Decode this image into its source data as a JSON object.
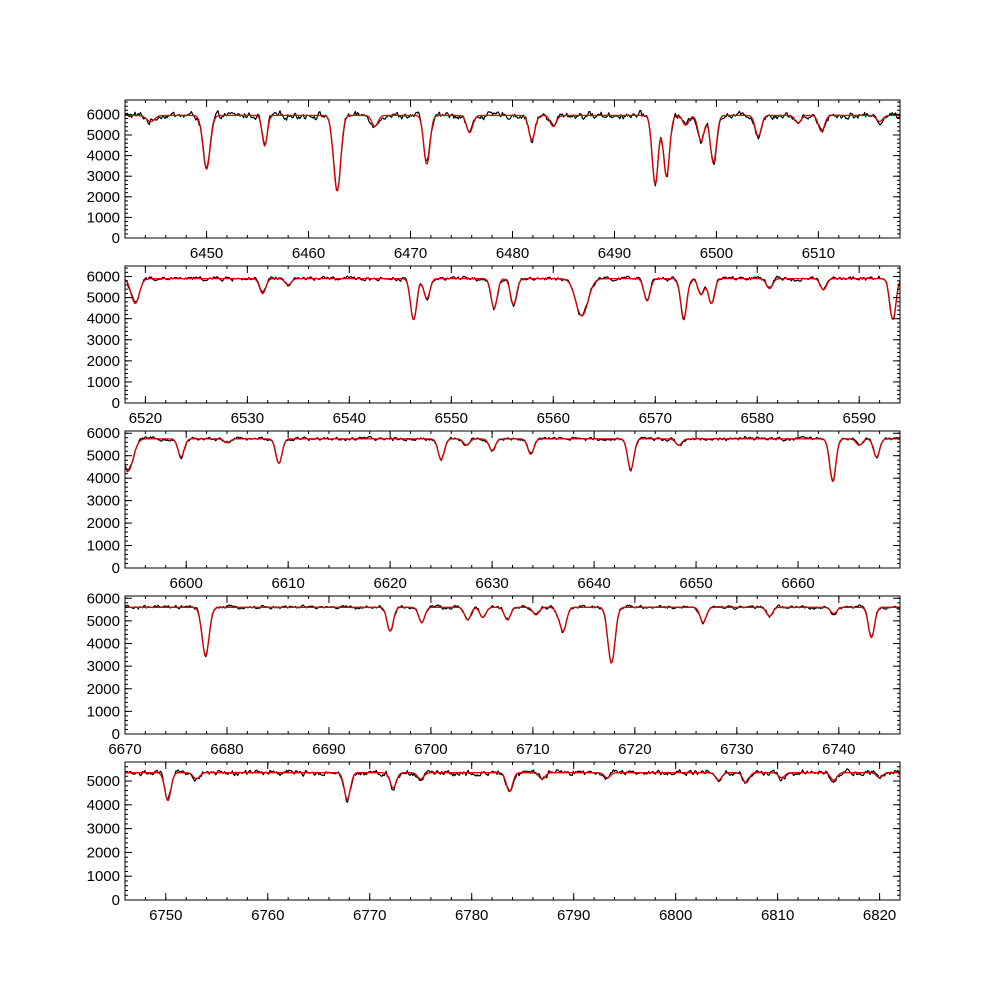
{
  "chart_data": [
    {
      "type": "line",
      "xlim": [
        6442,
        6518
      ],
      "ylim": [
        0,
        6700
      ],
      "xticks": [
        6450,
        6460,
        6470,
        6480,
        6490,
        6500,
        6510
      ],
      "yticks": [
        0,
        1000,
        2000,
        3000,
        4000,
        5000,
        6000
      ],
      "continuum": 5950,
      "series": [
        {
          "color": "#000000",
          "noise": 170
        },
        {
          "color": "#dd0000"
        }
      ],
      "lines": [
        [
          6444.5,
          0.05,
          0.4
        ],
        [
          6450.0,
          0.44,
          0.35
        ],
        [
          6455.7,
          0.25,
          0.25
        ],
        [
          6462.8,
          0.62,
          0.35
        ],
        [
          6466.5,
          0.09,
          0.3
        ],
        [
          6471.6,
          0.4,
          0.3
        ],
        [
          6475.8,
          0.14,
          0.3
        ],
        [
          6481.9,
          0.2,
          0.3
        ],
        [
          6484.0,
          0.09,
          0.3
        ],
        [
          6494.0,
          0.56,
          0.3
        ],
        [
          6495.1,
          0.5,
          0.3
        ],
        [
          6497.0,
          0.08,
          0.3
        ],
        [
          6498.5,
          0.21,
          0.3
        ],
        [
          6499.7,
          0.39,
          0.3
        ],
        [
          6504.1,
          0.17,
          0.3
        ],
        [
          6508.0,
          0.06,
          0.3
        ],
        [
          6510.3,
          0.13,
          0.3
        ],
        [
          6516.0,
          0.05,
          0.3
        ]
      ]
    },
    {
      "type": "line",
      "xlim": [
        6518,
        6594
      ],
      "ylim": [
        0,
        6500
      ],
      "xticks": [
        6520,
        6530,
        6540,
        6550,
        6560,
        6570,
        6580,
        6590
      ],
      "yticks": [
        0,
        1000,
        2000,
        3000,
        4000,
        5000,
        6000
      ],
      "continuum": 5900,
      "series": [
        {
          "color": "#000000",
          "noise": 100
        },
        {
          "color": "#dd0000"
        }
      ],
      "lines": [
        [
          6519.0,
          0.2,
          0.4
        ],
        [
          6531.5,
          0.12,
          0.3
        ],
        [
          6534.0,
          0.05,
          0.3
        ],
        [
          6546.3,
          0.33,
          0.3
        ],
        [
          6547.6,
          0.16,
          0.3
        ],
        [
          6554.2,
          0.24,
          0.3
        ],
        [
          6556.1,
          0.21,
          0.3
        ],
        [
          6562.8,
          0.3,
          0.6
        ],
        [
          6569.2,
          0.18,
          0.3
        ],
        [
          6572.8,
          0.32,
          0.3
        ],
        [
          6574.5,
          0.13,
          0.3
        ],
        [
          6575.5,
          0.2,
          0.3
        ],
        [
          6581.2,
          0.08,
          0.3
        ],
        [
          6586.5,
          0.09,
          0.3
        ],
        [
          6593.3,
          0.33,
          0.3
        ]
      ]
    },
    {
      "type": "line",
      "xlim": [
        6594,
        6670
      ],
      "ylim": [
        0,
        6100
      ],
      "xticks": [
        6600,
        6610,
        6620,
        6630,
        6640,
        6650,
        6660
      ],
      "yticks": [
        0,
        1000,
        2000,
        3000,
        4000,
        5000,
        6000
      ],
      "continuum": 5750,
      "series": [
        {
          "color": "#000000",
          "noise": 80
        },
        {
          "color": "#dd0000"
        }
      ],
      "lines": [
        [
          6594.3,
          0.25,
          0.5
        ],
        [
          6599.5,
          0.14,
          0.3
        ],
        [
          6604.0,
          0.03,
          0.3
        ],
        [
          6609.1,
          0.19,
          0.3
        ],
        [
          6625.0,
          0.16,
          0.3
        ],
        [
          6627.5,
          0.05,
          0.3
        ],
        [
          6630.0,
          0.09,
          0.3
        ],
        [
          6633.8,
          0.12,
          0.3
        ],
        [
          6643.6,
          0.24,
          0.3
        ],
        [
          6648.3,
          0.05,
          0.3
        ],
        [
          6663.4,
          0.33,
          0.3
        ],
        [
          6666.0,
          0.05,
          0.3
        ],
        [
          6667.7,
          0.14,
          0.3
        ]
      ]
    },
    {
      "type": "line",
      "xlim": [
        6670,
        6746
      ],
      "ylim": [
        0,
        6100
      ],
      "xticks": [
        6670,
        6680,
        6690,
        6700,
        6710,
        6720,
        6730,
        6740
      ],
      "yticks": [
        0,
        1000,
        2000,
        3000,
        4000,
        5000,
        6000
      ],
      "continuum": 5600,
      "series": [
        {
          "color": "#000000",
          "noise": 80
        },
        {
          "color": "#dd0000"
        }
      ],
      "lines": [
        [
          6677.9,
          0.38,
          0.35
        ],
        [
          6696.0,
          0.19,
          0.3
        ],
        [
          6699.1,
          0.12,
          0.3
        ],
        [
          6703.6,
          0.1,
          0.3
        ],
        [
          6705.1,
          0.08,
          0.3
        ],
        [
          6707.5,
          0.1,
          0.3
        ],
        [
          6710.3,
          0.06,
          0.3
        ],
        [
          6712.5,
          0.05,
          0.3
        ],
        [
          6713.0,
          0.18,
          0.3
        ],
        [
          6717.7,
          0.44,
          0.35
        ],
        [
          6726.7,
          0.12,
          0.3
        ],
        [
          6733.2,
          0.07,
          0.3
        ],
        [
          6739.5,
          0.05,
          0.3
        ],
        [
          6743.2,
          0.24,
          0.3
        ]
      ]
    },
    {
      "type": "line",
      "xlim": [
        6746,
        6822
      ],
      "ylim": [
        0,
        5800
      ],
      "xticks": [
        6750,
        6760,
        6770,
        6780,
        6790,
        6800,
        6810,
        6820
      ],
      "yticks": [
        0,
        1000,
        2000,
        3000,
        4000,
        5000
      ],
      "continuum": 5350,
      "series": [
        {
          "color": "#000000",
          "noise": 120
        },
        {
          "color": "#dd0000"
        }
      ],
      "lines": [
        [
          6750.2,
          0.22,
          0.3
        ],
        [
          6753.0,
          0.05,
          0.3
        ],
        [
          6767.8,
          0.21,
          0.3
        ],
        [
          6772.3,
          0.12,
          0.3
        ],
        [
          6775.0,
          0.05,
          0.3
        ],
        [
          6783.7,
          0.15,
          0.3
        ],
        [
          6786.9,
          0.05,
          0.3
        ],
        [
          6793.3,
          0.04,
          0.3
        ],
        [
          6804.2,
          0.06,
          0.3
        ],
        [
          6806.9,
          0.08,
          0.3
        ],
        [
          6810.4,
          0.04,
          0.3
        ],
        [
          6815.5,
          0.06,
          0.3
        ],
        [
          6820.0,
          0.04,
          0.3
        ]
      ]
    }
  ]
}
